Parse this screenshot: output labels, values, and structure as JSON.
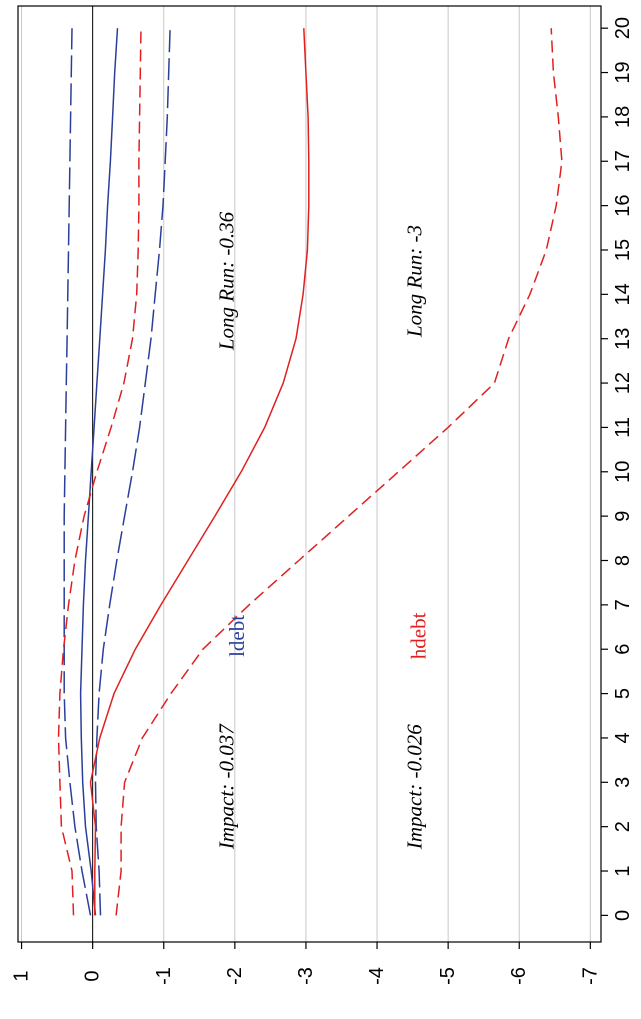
{
  "chart_data": {
    "type": "line",
    "orientation": "rotated-90-clockwise",
    "x": [
      0,
      1,
      2,
      3,
      4,
      5,
      6,
      7,
      8,
      9,
      10,
      11,
      12,
      13,
      14,
      15,
      16,
      17,
      18,
      19,
      20
    ],
    "x_ticks": [
      "0",
      "1",
      "2",
      "3",
      "4",
      "5",
      "6",
      "7",
      "8",
      "9",
      "10",
      "11",
      "12",
      "13",
      "14",
      "15",
      "16",
      "17",
      "18",
      "19",
      "20"
    ],
    "y_ticks": [
      "1",
      "0",
      "-1",
      "-2",
      "-3",
      "-4",
      "-5",
      "-6",
      "-7"
    ],
    "y_tick_values": [
      1,
      0,
      -1,
      -2,
      -3,
      -4,
      -5,
      -6,
      -7
    ],
    "ylim": [
      -7.15,
      1.05
    ],
    "xlim": [
      -0.6,
      20.5
    ],
    "grid": true,
    "series": [
      {
        "name": "ldebt",
        "role": "estimate",
        "color": "#2a3f99",
        "dash": "solid",
        "values": [
          -0.04,
          0.02,
          0.1,
          0.14,
          0.16,
          0.17,
          0.15,
          0.13,
          0.1,
          0.06,
          0.02,
          -0.02,
          -0.06,
          -0.1,
          -0.14,
          -0.18,
          -0.21,
          -0.25,
          -0.28,
          -0.31,
          -0.35
        ]
      },
      {
        "role": "upper band",
        "color": "#2a3f99",
        "dash": "longdash",
        "values": [
          0.03,
          0.15,
          0.25,
          0.32,
          0.38,
          0.4,
          0.4,
          0.4,
          0.4,
          0.4,
          0.39,
          0.38,
          0.37,
          0.36,
          0.35,
          0.34,
          0.33,
          0.32,
          0.31,
          0.3,
          0.29
        ]
      },
      {
        "role": "lower band",
        "color": "#2a3f99",
        "dash": "longdash",
        "values": [
          -0.11,
          -0.09,
          -0.05,
          -0.04,
          -0.06,
          -0.09,
          -0.15,
          -0.24,
          -0.34,
          -0.45,
          -0.56,
          -0.66,
          -0.74,
          -0.82,
          -0.88,
          -0.94,
          -0.99,
          -1.02,
          -1.05,
          -1.07,
          -1.09
        ]
      },
      {
        "name": "hdebt",
        "role": "estimate",
        "color": "#e02020",
        "dash": "solid",
        "values": [
          -0.03,
          -0.03,
          -0.04,
          0.03,
          -0.1,
          -0.3,
          -0.6,
          -0.96,
          -1.34,
          -1.72,
          -2.09,
          -2.42,
          -2.68,
          -2.86,
          -2.96,
          -3.02,
          -3.04,
          -3.04,
          -3.03,
          -3.0,
          -2.97
        ]
      },
      {
        "role": "upper band",
        "color": "#e02020",
        "dash": "dash",
        "values": [
          0.27,
          0.29,
          0.44,
          0.46,
          0.48,
          0.46,
          0.41,
          0.34,
          0.25,
          0.12,
          -0.06,
          -0.26,
          -0.44,
          -0.56,
          -0.62,
          -0.64,
          -0.65,
          -0.65,
          -0.66,
          -0.67,
          -0.68
        ]
      },
      {
        "role": "lower band",
        "color": "#e02020",
        "dash": "dash",
        "values": [
          -0.33,
          -0.4,
          -0.4,
          -0.45,
          -0.7,
          -1.1,
          -1.55,
          -2.2,
          -2.9,
          -3.6,
          -4.3,
          -5.0,
          -5.65,
          -5.85,
          -6.15,
          -6.38,
          -6.52,
          -6.6,
          -6.55,
          -6.48,
          -6.45
        ]
      }
    ],
    "annotations": {
      "ldebt_label": "ldebt",
      "hdebt_label": "hdebt",
      "impact_ldebt": "Impact: -0.037",
      "longrun_ldebt": "Long Run: -0.36",
      "impact_hdebt": "Impact: -0.026",
      "longrun_hdebt": "Long Run: -3"
    }
  }
}
